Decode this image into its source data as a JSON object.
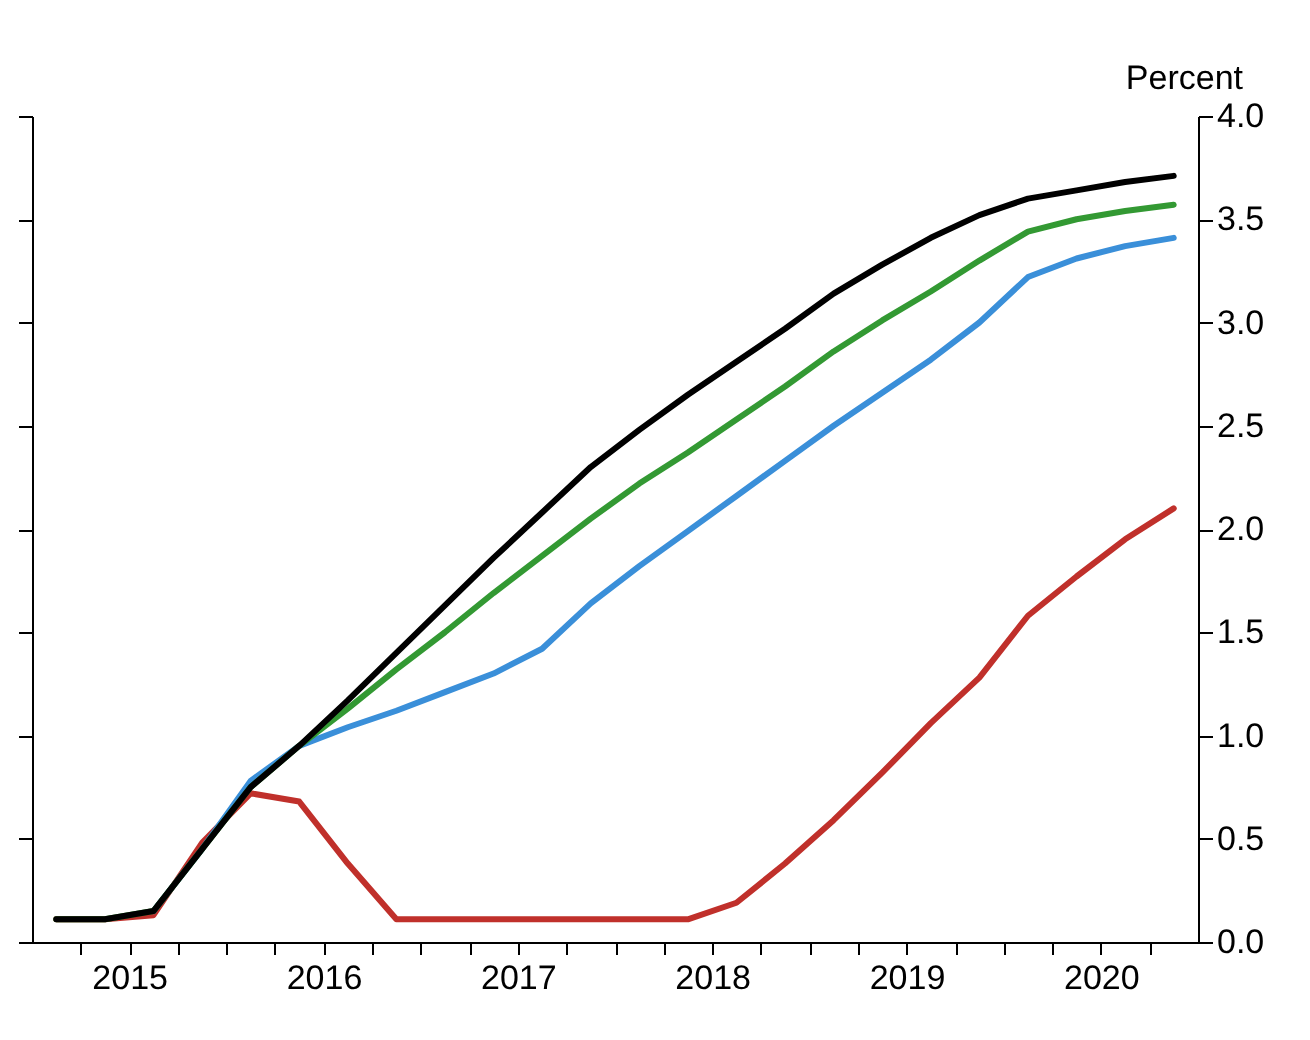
{
  "chart_data": {
    "type": "line",
    "ylabel": "Percent",
    "x": [
      2015.125,
      2015.375,
      2015.625,
      2015.875,
      2016.125,
      2016.375,
      2016.625,
      2016.875,
      2017.125,
      2017.375,
      2017.625,
      2017.875,
      2018.125,
      2018.375,
      2018.625,
      2018.875,
      2019.125,
      2019.375,
      2019.625,
      2019.875,
      2020.125,
      2020.375,
      2020.625,
      2020.875
    ],
    "series": [
      {
        "color": "#c0302b",
        "values": [
          0.11,
          0.11,
          0.13,
          0.48,
          0.72,
          0.68,
          0.38,
          0.11,
          0.11,
          0.11,
          0.11,
          0.11,
          0.11,
          0.11,
          0.19,
          0.38,
          0.59,
          0.82,
          1.06,
          1.28,
          1.58,
          1.77,
          1.95,
          2.1
        ]
      },
      {
        "color": "#3a8fd9",
        "values": [
          null,
          null,
          0.15,
          0.45,
          0.78,
          0.95,
          1.04,
          1.12,
          1.21,
          1.3,
          1.42,
          1.64,
          1.82,
          1.99,
          2.16,
          2.33,
          2.5,
          2.66,
          2.82,
          3.0,
          3.22,
          3.31,
          3.37,
          3.41
        ]
      },
      {
        "color": "#339933",
        "values": [
          0.11,
          0.11,
          0.15,
          0.45,
          0.75,
          0.95,
          1.13,
          1.32,
          1.5,
          1.69,
          1.87,
          2.05,
          2.22,
          2.37,
          2.53,
          2.69,
          2.86,
          3.01,
          3.15,
          3.3,
          3.44,
          3.5,
          3.54,
          3.57
        ]
      },
      {
        "color": "#000000",
        "values": [
          0.11,
          0.11,
          0.15,
          0.45,
          0.75,
          0.95,
          1.17,
          1.4,
          1.63,
          1.86,
          2.08,
          2.3,
          2.48,
          2.65,
          2.81,
          2.97,
          3.14,
          3.28,
          3.41,
          3.52,
          3.6,
          3.64,
          3.68,
          3.71
        ]
      }
    ],
    "xlim": [
      2015,
      2021
    ],
    "xticks": [
      {
        "value": 2015.25,
        "label": null
      },
      {
        "value": 2015.5,
        "label": "2015"
      },
      {
        "value": 2015.75,
        "label": null
      },
      {
        "value": 2016,
        "label": null
      },
      {
        "value": 2016.25,
        "label": null
      },
      {
        "value": 2016.5,
        "label": "2016"
      },
      {
        "value": 2016.75,
        "label": null
      },
      {
        "value": 2017,
        "label": null
      },
      {
        "value": 2017.25,
        "label": null
      },
      {
        "value": 2017.5,
        "label": "2017"
      },
      {
        "value": 2017.75,
        "label": null
      },
      {
        "value": 2018,
        "label": null
      },
      {
        "value": 2018.25,
        "label": null
      },
      {
        "value": 2018.5,
        "label": "2018"
      },
      {
        "value": 2018.75,
        "label": null
      },
      {
        "value": 2019,
        "label": null
      },
      {
        "value": 2019.25,
        "label": null
      },
      {
        "value": 2019.5,
        "label": "2019"
      },
      {
        "value": 2019.75,
        "label": null
      },
      {
        "value": 2020,
        "label": null
      },
      {
        "value": 2020.25,
        "label": null
      },
      {
        "value": 2020.5,
        "label": "2020"
      },
      {
        "value": 2020.75,
        "label": null
      }
    ],
    "ylim": [
      0,
      4.0
    ],
    "yticks": [
      {
        "value": 0,
        "label": "0.0"
      },
      {
        "value": 0.5,
        "label": "0.5"
      },
      {
        "value": 1,
        "label": "1.0"
      },
      {
        "value": 1.5,
        "label": "1.5"
      },
      {
        "value": 2,
        "label": "2.0"
      },
      {
        "value": 2.5,
        "label": "2.5"
      },
      {
        "value": 3,
        "label": "3.0"
      },
      {
        "value": 3.5,
        "label": "3.5"
      },
      {
        "value": 4,
        "label": "4.0"
      }
    ],
    "grid": false,
    "marker": "none",
    "line_style": "solid"
  }
}
